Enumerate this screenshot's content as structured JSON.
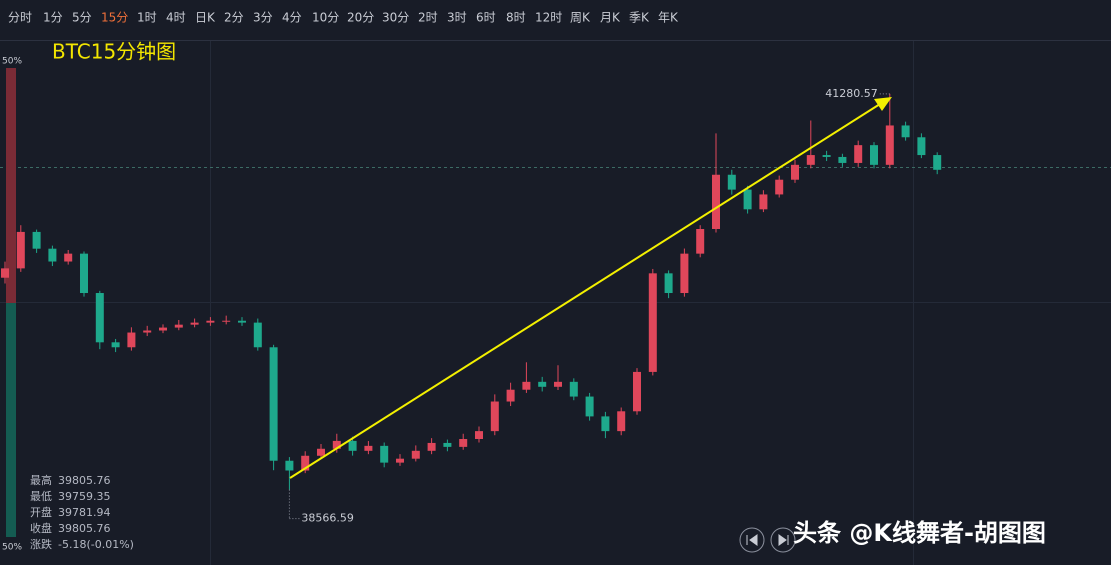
{
  "toolbar": {
    "items": [
      "分时",
      "1分",
      "5分",
      "15分",
      "1时",
      "4时",
      "日K",
      "2分",
      "3分",
      "4分",
      "10分",
      "20分",
      "30分",
      "2时",
      "3时",
      "6时",
      "8时",
      "12时",
      "周K",
      "月K",
      "季K",
      "年K"
    ],
    "active": "15分"
  },
  "ratio_bar": {
    "top_label": "50%",
    "bottom_label": "50%"
  },
  "info_panel": [
    {
      "label": "最高",
      "value": 39805.76
    },
    {
      "label": "最低",
      "value": 39759.35
    },
    {
      "label": "开盘",
      "value": 39781.94
    },
    {
      "label": "收盘",
      "value": 39805.76
    },
    {
      "label": "涨跌",
      "value": "-5.18(-0.01%)"
    }
  ],
  "watermark": "头条 @K线舞者-胡图图",
  "chart_data": {
    "type": "candlestick",
    "title": "BTC15分钟图",
    "up_color": "#e0475b",
    "down_color": "#1ea98c",
    "ylim": [
      38050,
      41650
    ],
    "open": [
      40020,
      40084,
      40334,
      40219,
      40131,
      40185,
      39915,
      39577,
      39543,
      39644,
      39658,
      39678,
      39698,
      39712,
      39725,
      39725,
      39712,
      39543,
      38765,
      38698,
      38799,
      38847,
      38901,
      38833,
      38867,
      38752,
      38779,
      38833,
      38887,
      38860,
      38914,
      38968,
      39171,
      39252,
      39306,
      39272,
      39306,
      39205,
      39069,
      38968,
      39104,
      39374,
      40050,
      39915,
      40185,
      40354,
      40726,
      40624,
      40489,
      40591,
      40692,
      40794,
      40861,
      40848,
      40807,
      40929,
      40794,
      41064,
      40983,
      40861
    ],
    "high": [
      40130,
      40380,
      40350,
      40240,
      40210,
      40200,
      39930,
      39600,
      39680,
      39690,
      39700,
      39730,
      39740,
      39750,
      39760,
      39750,
      39740,
      39560,
      38790,
      38830,
      38880,
      38950,
      38930,
      38900,
      38890,
      38810,
      38870,
      38920,
      38910,
      38950,
      39000,
      39220,
      39300,
      39440,
      39340,
      39420,
      39330,
      39230,
      39100,
      39130,
      39400,
      40080,
      40070,
      40220,
      40380,
      41010,
      40760,
      40650,
      40620,
      40720,
      40830,
      41098,
      40890,
      40870,
      40960,
      40950,
      41280.57,
      41090,
      41010,
      40880
    ],
    "low": [
      39980,
      40060,
      40190,
      40100,
      40110,
      39890,
      39530,
      39510,
      39520,
      39620,
      39640,
      39660,
      39680,
      39690,
      39700,
      39690,
      39520,
      38700,
      38566.59,
      38680,
      38780,
      38820,
      38800,
      38810,
      38720,
      38730,
      38760,
      38810,
      38830,
      38840,
      38890,
      38940,
      39140,
      39230,
      39240,
      39250,
      39180,
      39040,
      38920,
      38940,
      39080,
      39350,
      39880,
      39890,
      40160,
      40330,
      40590,
      40460,
      40470,
      40570,
      40670,
      40770,
      40820,
      40780,
      40780,
      40770,
      40770,
      40960,
      40840,
      40730
    ],
    "close": [
      40084,
      40334,
      40219,
      40131,
      40185,
      39915,
      39577,
      39543,
      39644,
      39658,
      39678,
      39698,
      39712,
      39725,
      39725,
      39712,
      39543,
      38765,
      38698,
      38799,
      38847,
      38901,
      38833,
      38867,
      38752,
      38779,
      38833,
      38887,
      38860,
      38914,
      38968,
      39171,
      39252,
      39306,
      39272,
      39306,
      39205,
      39069,
      38968,
      39104,
      39374,
      40050,
      39915,
      40185,
      40354,
      40726,
      40624,
      40489,
      40591,
      40692,
      40794,
      40861,
      40848,
      40807,
      40929,
      40794,
      41064,
      40983,
      40861,
      40760
    ]
  }
}
